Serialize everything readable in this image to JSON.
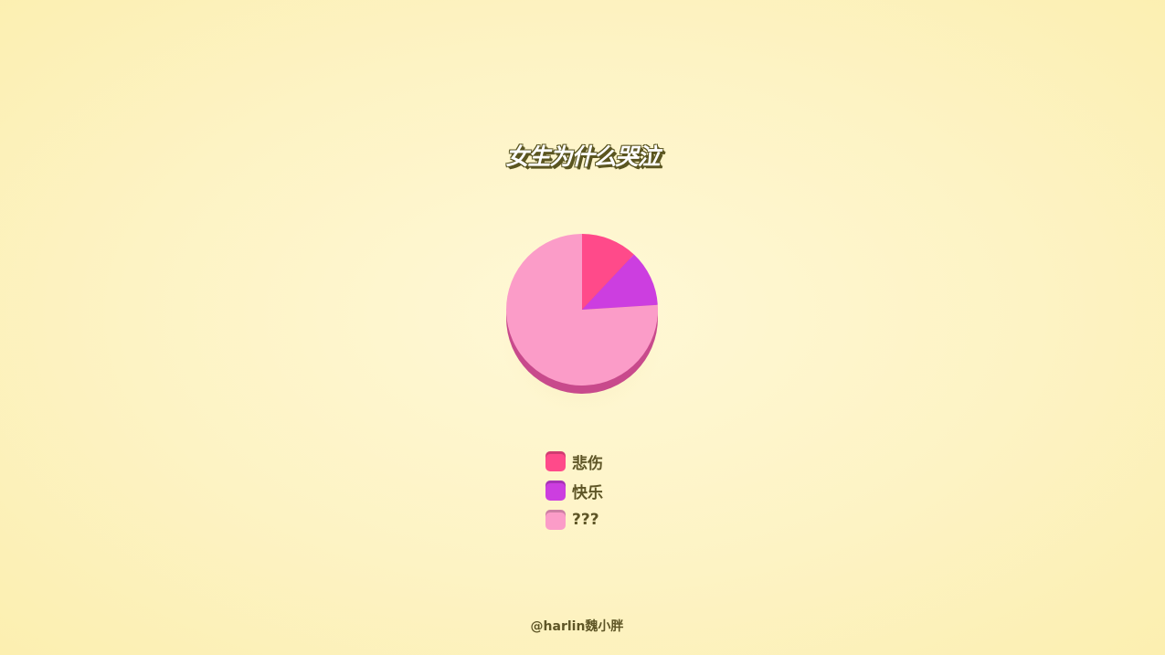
{
  "chart_data": {
    "type": "pie",
    "title": "女生为什么哭泣",
    "categories": [
      "悲伤",
      "快乐",
      "???"
    ],
    "values": [
      12,
      12,
      76
    ],
    "colors": [
      "#ff4a8a",
      "#cc3ee0",
      "#fb9cc8"
    ],
    "legend": "bottom",
    "style": "3d"
  },
  "footer": "@harlin魏小胖"
}
